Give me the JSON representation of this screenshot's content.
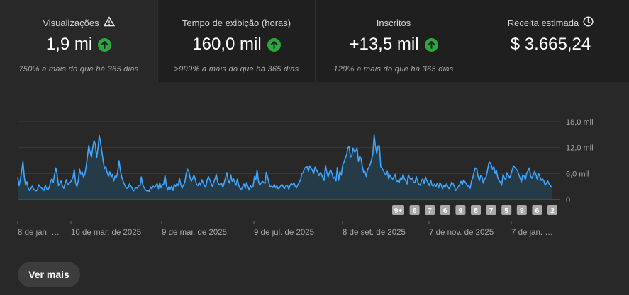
{
  "metrics": [
    {
      "label": "Visualizações",
      "value": "1,9 mi",
      "note": "750% a mais do que há 365 dias",
      "label_icon": "warning-icon",
      "trend": "up"
    },
    {
      "label": "Tempo de exibição (horas)",
      "value": "160,0 mil",
      "note": ">999% a mais do que há 365 dias",
      "trend": "up"
    },
    {
      "label": "Inscritos",
      "value": "+13,5 mil",
      "note": "129% a mais do que há 365 dias",
      "trend": "up"
    },
    {
      "label": "Receita estimada",
      "value": "$ 3.665,24",
      "label_icon": "clock-icon"
    }
  ],
  "chart_data": {
    "type": "area",
    "y_ticks": [
      "18,0 mil",
      "12,0 mil",
      "6,0 mil",
      "0"
    ],
    "ylim": [
      0,
      18000
    ],
    "x_labels": [
      "8 de jan. …",
      "10 de mar. de 2025",
      "9 de mai. de 2025",
      "9 de jul. de 2025",
      "8 de set. de 2025",
      "7 de nov. de 2025",
      "7 de jan. …"
    ],
    "series": [
      {
        "values": [
          5200,
          3200,
          4600,
          6700,
          8800,
          5100,
          3300,
          4100,
          2600,
          2100,
          2500,
          3100,
          2400,
          2200,
          2000,
          2300,
          3400,
          3000,
          2700,
          2400,
          2100,
          3300,
          2500,
          2300,
          2800,
          4200,
          4800,
          4000,
          5800,
          7300,
          5700,
          3200,
          3600,
          4300,
          3100,
          2600,
          3700,
          4600,
          3400,
          3800,
          4000,
          4500,
          5100,
          6900,
          3800,
          3000,
          4200,
          7000,
          5900,
          6400,
          5200,
          5800,
          7500,
          10000,
          12500,
          11000,
          9800,
          11900,
          13600,
          12800,
          9600,
          11800,
          14800,
          13200,
          11000,
          8800,
          7100,
          7600,
          6200,
          5400,
          6400,
          5200,
          5800,
          4300,
          5400,
          5100,
          6300,
          9000,
          6800,
          5300,
          4300,
          3600,
          2900,
          2600,
          2700,
          3600,
          3100,
          2600,
          2000,
          2400,
          2800,
          2600,
          3300,
          3200,
          5200,
          3400,
          2800,
          2300,
          2000,
          2100,
          1900,
          2900,
          2500,
          3100,
          2800,
          3200,
          3700,
          2500,
          3900,
          2700,
          3400,
          3600,
          5600,
          3300,
          2200,
          3000,
          2400,
          3100,
          2100,
          3500,
          3000,
          3700,
          3200,
          4900,
          3500,
          2600,
          3300,
          3900,
          5800,
          7000,
          6600,
          5100,
          4200,
          4900,
          5600,
          4700,
          3500,
          3200,
          4000,
          3300,
          4600,
          3900,
          3200,
          2800,
          4500,
          5300,
          4600,
          3800,
          3000,
          4000,
          4800,
          5800,
          4100,
          3400,
          3600,
          3700,
          2800,
          3900,
          5000,
          6200,
          4400,
          3800,
          5700,
          4200,
          4800,
          4000,
          3300,
          4700,
          3300,
          2600,
          2300,
          3000,
          3600,
          2600,
          3900,
          3000,
          2200,
          3200,
          2700,
          3100,
          5300,
          4600,
          6800,
          4300,
          3300,
          3800,
          4200,
          4000,
          3700,
          6300,
          5200,
          3800,
          2900,
          3100,
          2800,
          3500,
          2700,
          3200,
          2500,
          2700,
          3200,
          3500,
          2800,
          2600,
          3300,
          3300,
          2400,
          3200,
          3700,
          3400,
          3900,
          3100,
          2700,
          3400,
          4000,
          4500,
          6000,
          6200,
          7200,
          7500,
          7600,
          6500,
          7800,
          7200,
          6800,
          6000,
          7500,
          6900,
          6400,
          5500,
          6200,
          5800,
          5000,
          4400,
          7900,
          6300,
          5200,
          6300,
          6800,
          5900,
          4900,
          5200,
          4300,
          7400,
          4400,
          6500,
          5600,
          7900,
          8600,
          9500,
          10300,
          12000,
          12200,
          9800,
          10100,
          11900,
          11000,
          11200,
          12000,
          8800,
          10000,
          9500,
          7700,
          6200,
          6500,
          5300,
          6900,
          7500,
          8100,
          9200,
          10600,
          14900,
          12300,
          10600,
          12400,
          12400,
          7600,
          7200,
          6700,
          6000,
          5600,
          6500,
          4800,
          5700,
          5100,
          4700,
          5200,
          5800,
          4200,
          4300,
          3900,
          5000,
          4600,
          5800,
          4800,
          4300,
          3600,
          5700,
          5000,
          4600,
          5000,
          4000,
          3900,
          5300,
          4300,
          3500,
          3300,
          4400,
          4800,
          3700,
          5200,
          4400,
          3900,
          3200,
          4500,
          3300,
          3100,
          3600,
          3000,
          3800,
          2700,
          3900,
          3400,
          2500,
          3300,
          2800,
          3600,
          3000,
          2500,
          3100,
          4000,
          3700,
          3000,
          2100,
          2500,
          3000,
          3500,
          4200,
          3400,
          4500,
          4100,
          3700,
          3100,
          3200,
          2600,
          4300,
          5000,
          6400,
          7300,
          7100,
          5400,
          4400,
          5500,
          5200,
          3800,
          4700,
          5200,
          6400,
          8200,
          8600,
          8000,
          7000,
          7600,
          6000,
          6700,
          5000,
          4400,
          4000,
          3300,
          5800,
          5000,
          4500,
          6200,
          5600,
          5000,
          5800,
          6900,
          7800,
          7400,
          7000,
          6700,
          5800,
          4900,
          4100,
          5700,
          5400,
          4600,
          6100,
          6600,
          7300,
          5400,
          4900,
          5700,
          6500,
          5800,
          4700,
          6000,
          5300,
          4400,
          4800,
          4300,
          3300,
          3800,
          4300,
          3600,
          3200,
          2800
        ]
      }
    ]
  },
  "event_markers": [
    "9+",
    "6",
    "7",
    "6",
    "9",
    "8",
    "7",
    "5",
    "9",
    "6",
    "2"
  ],
  "colors": {
    "line": "#3ea6ff",
    "fill": "#263b48",
    "positive": "#2ba640"
  },
  "actions": {
    "more_label": "Ver mais"
  }
}
